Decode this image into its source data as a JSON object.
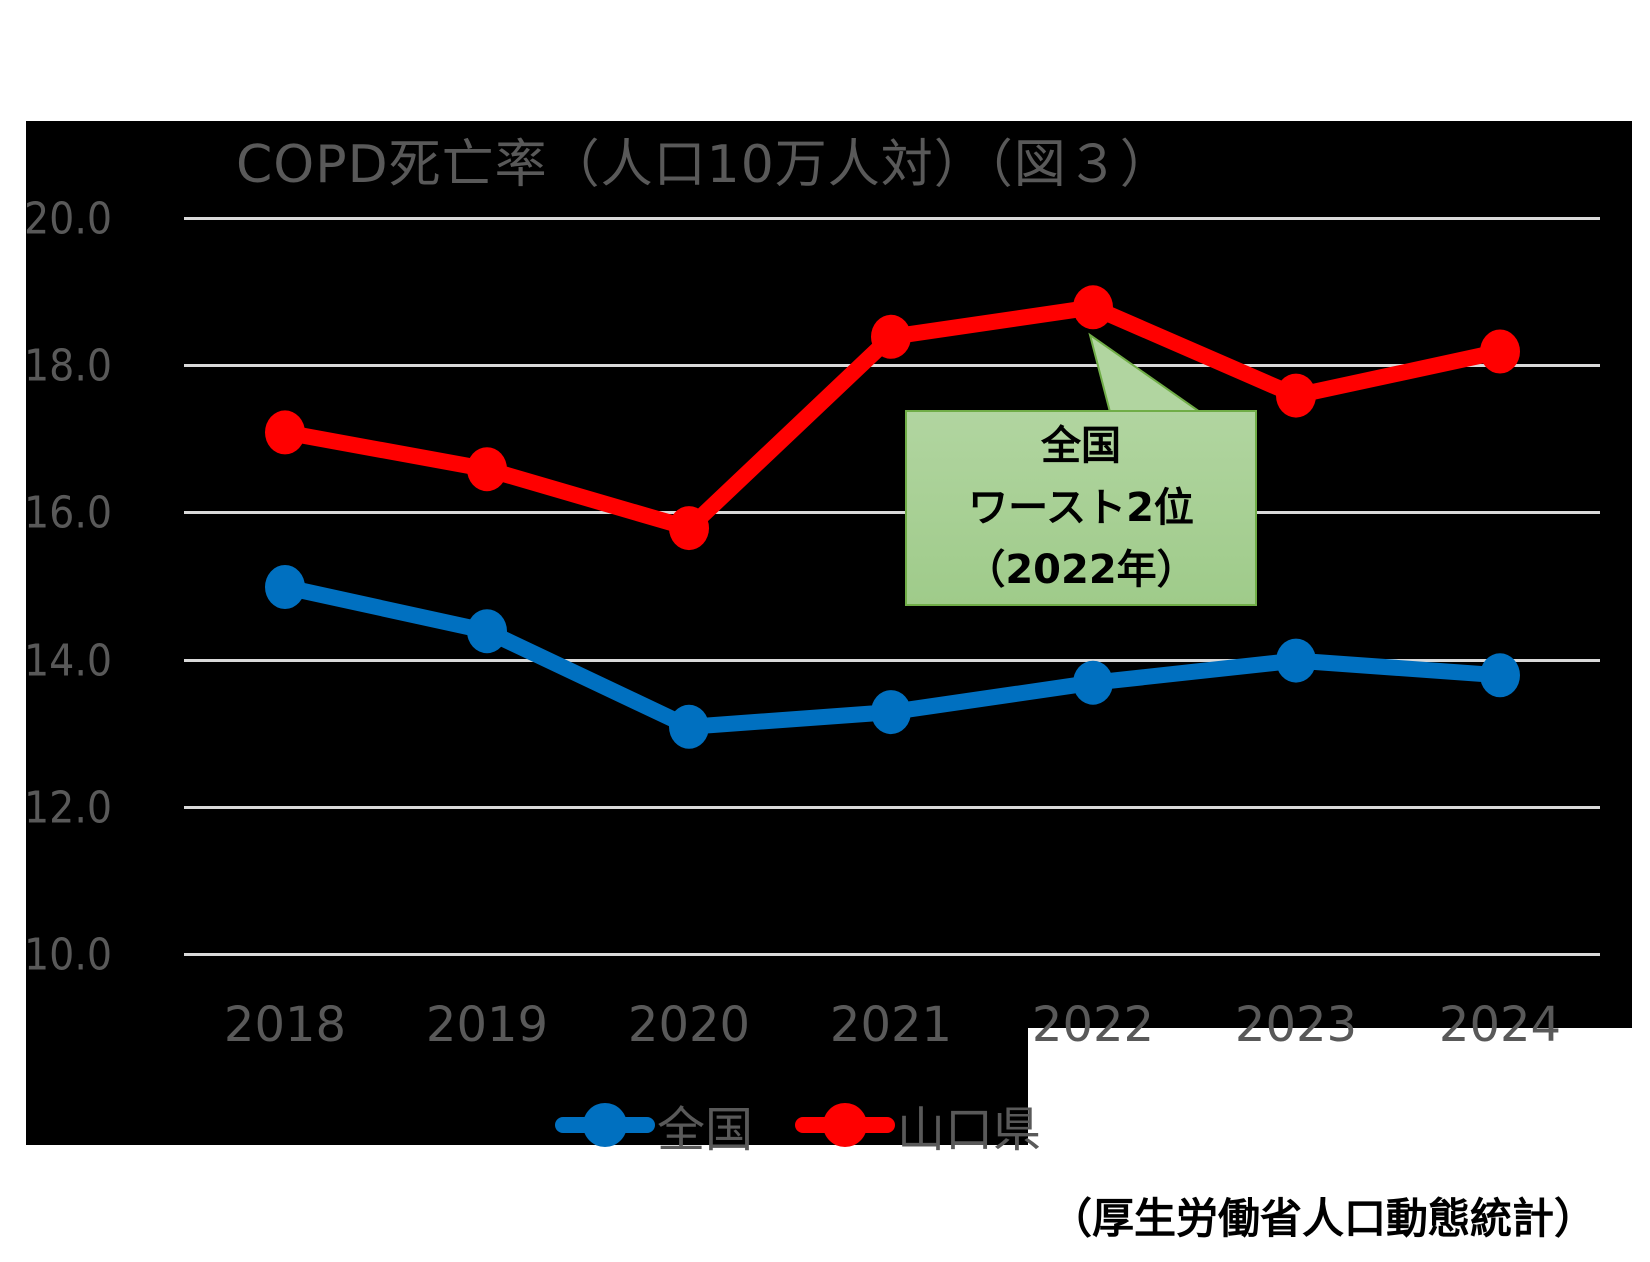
{
  "chart_data": {
    "type": "line",
    "title": "COPD死亡率（人口10万人対）（図３）",
    "xlabel": "",
    "ylabel": "",
    "categories": [
      "2018",
      "2019",
      "2020",
      "2021",
      "2022",
      "2023",
      "2024"
    ],
    "series": [
      {
        "name": "全国",
        "color": "#0070c0",
        "values": [
          15.0,
          14.4,
          13.1,
          13.3,
          13.7,
          14.0,
          13.8
        ]
      },
      {
        "name": "山口県",
        "color": "#ff0000",
        "values": [
          17.1,
          16.6,
          15.8,
          18.4,
          18.8,
          17.6,
          18.2
        ]
      }
    ],
    "ylim": [
      10.0,
      20.0
    ],
    "yticks": [
      "10.0",
      "12.0",
      "14.0",
      "16.0",
      "18.0",
      "20.0"
    ],
    "grid": true,
    "legend_position": "bottom",
    "annotations": [
      {
        "text": "全国\nワースト2位\n（2022年）",
        "points_to": {
          "series": "山口県",
          "category": "2022"
        }
      }
    ]
  },
  "title": "COPD死亡率（人口10万人対）（図３）",
  "yaxis": {
    "ticks": [
      "20.0",
      "18.0",
      "16.0",
      "14.0",
      "12.0",
      "10.0"
    ]
  },
  "xaxis": {
    "ticks": [
      "2018",
      "2019",
      "2020",
      "2021",
      "2022",
      "2023",
      "2024"
    ]
  },
  "callout": {
    "line1": "全国",
    "line2": "ワースト2位",
    "line3": "（2022年）"
  },
  "legend": {
    "items": [
      {
        "label": "全国",
        "color": "#0070c0"
      },
      {
        "label": "山口県",
        "color": "#ff0000"
      }
    ]
  },
  "source": "（厚生労働省人口動態統計）"
}
